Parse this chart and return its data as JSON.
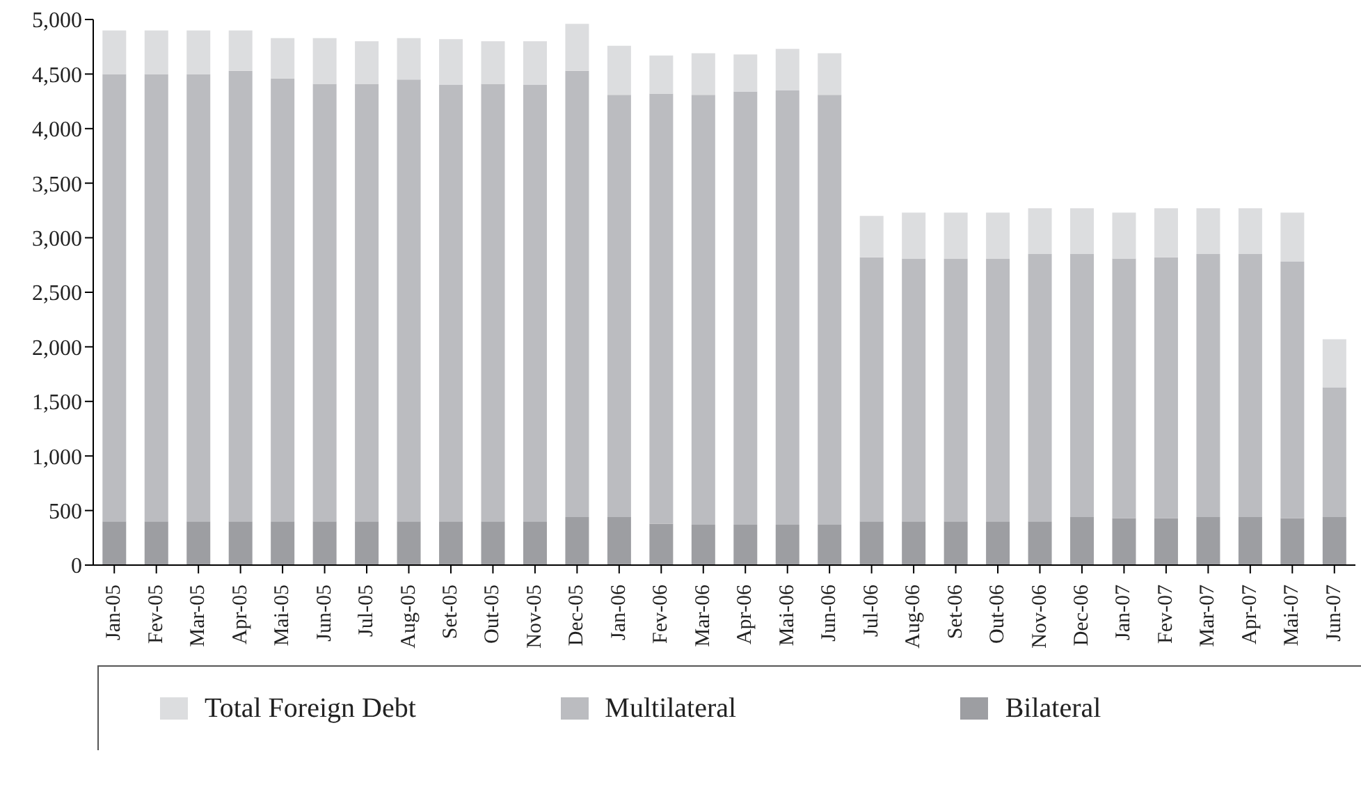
{
  "chart_data": {
    "type": "bar",
    "stacked": true,
    "categories": [
      "Jan-05",
      "Fev-05",
      "Mar-05",
      "Apr-05",
      "Mai-05",
      "Jun-05",
      "Jul-05",
      "Aug-05",
      "Set-05",
      "Out-05",
      "Nov-05",
      "Dec-05",
      "Jan-06",
      "Fev-06",
      "Mar-06",
      "Apr-06",
      "Mai-06",
      "Jun-06",
      "Jul-06",
      "Aug-06",
      "Set-06",
      "Out-06",
      "Nov-06",
      "Dec-06",
      "Jan-07",
      "Fev-07",
      "Mar-07",
      "Apr-07",
      "Mai-07",
      "Jun-07"
    ],
    "series": [
      {
        "name": "Bilateral",
        "color": "#9d9ea2",
        "values": [
          400,
          400,
          400,
          400,
          400,
          400,
          400,
          400,
          400,
          400,
          400,
          440,
          440,
          380,
          370,
          370,
          370,
          370,
          400,
          400,
          400,
          400,
          400,
          440,
          430,
          430,
          440,
          440,
          430,
          440
        ]
      },
      {
        "name": "Multilateral",
        "color": "#bbbcc0",
        "values": [
          4100,
          4100,
          4100,
          4130,
          4060,
          4010,
          4010,
          4050,
          4000,
          4010,
          4000,
          4090,
          3870,
          3940,
          3940,
          3970,
          3980,
          3940,
          2420,
          2410,
          2410,
          2410,
          2450,
          2410,
          2380,
          2390,
          2410,
          2410,
          2350,
          1190
        ]
      },
      {
        "name": "Total Foreign Debt",
        "color": "#dcdddf",
        "values": [
          400,
          400,
          400,
          370,
          370,
          420,
          390,
          380,
          420,
          390,
          400,
          430,
          450,
          350,
          380,
          340,
          380,
          380,
          380,
          420,
          420,
          420,
          420,
          420,
          420,
          450,
          420,
          420,
          450,
          440
        ]
      }
    ],
    "ylim": [
      0,
      5000
    ],
    "yticks": [
      0,
      500,
      {
        "value": 1000,
        "label": "1,000"
      },
      {
        "value": 1500,
        "label": "1,500"
      },
      {
        "value": 2000,
        "label": "2,000"
      },
      {
        "value": 2500,
        "label": "2,500"
      },
      {
        "value": 3000,
        "label": "3,000"
      },
      {
        "value": 3500,
        "label": "3,500"
      },
      {
        "value": 4000,
        "label": "4,000"
      },
      {
        "value": 4500,
        "label": "4,500"
      },
      {
        "value": 5000,
        "label": "5,000"
      }
    ],
    "grid": false,
    "legend": "bottom"
  }
}
